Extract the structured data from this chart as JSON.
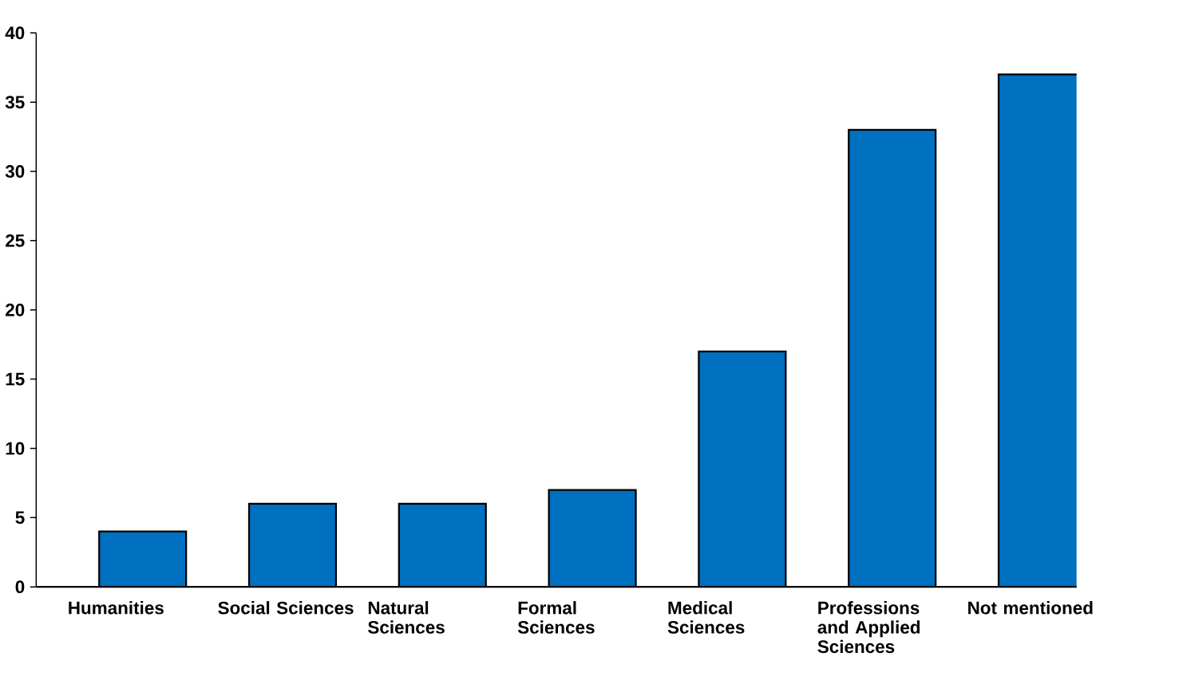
{
  "chart_data": {
    "type": "bar",
    "categories": [
      "Humanities",
      "Social Sciences",
      "Natural Sciences",
      "Formal Sciences",
      "Medical Sciences",
      "Professions and Applied Sciences",
      "Not mentioned"
    ],
    "values": [
      4,
      6,
      6,
      7,
      17,
      33,
      37
    ],
    "color": "#0070c0",
    "ylim": [
      0,
      40
    ],
    "yticks": [
      0,
      5,
      10,
      15,
      20,
      25,
      30,
      35,
      40
    ]
  }
}
